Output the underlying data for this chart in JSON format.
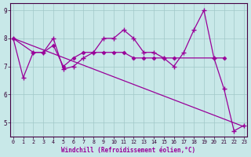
{
  "xlabel": "Windchill (Refroidissement éolien,°C)",
  "background_color": "#c8e8e8",
  "grid_color": "#a0c8c8",
  "line_color": "#990099",
  "xlim": [
    -0.3,
    23.3
  ],
  "ylim": [
    4.5,
    9.25
  ],
  "yticks": [
    5,
    6,
    7,
    8,
    9
  ],
  "xticks": [
    0,
    1,
    2,
    3,
    4,
    5,
    6,
    7,
    8,
    9,
    10,
    11,
    12,
    13,
    14,
    15,
    16,
    17,
    18,
    19,
    20,
    21,
    22,
    23
  ],
  "line1_x": [
    0,
    1,
    2,
    3,
    4,
    5,
    6,
    7,
    8,
    9,
    10,
    11,
    12,
    13,
    14,
    15,
    16,
    17,
    18,
    19,
    20,
    21,
    22,
    23
  ],
  "line1_y": [
    8.0,
    6.6,
    7.5,
    7.5,
    8.0,
    6.9,
    7.0,
    7.3,
    7.5,
    8.0,
    8.0,
    8.3,
    8.0,
    7.5,
    7.5,
    7.3,
    7.0,
    7.5,
    8.3,
    9.0,
    7.3,
    6.2,
    4.7,
    4.9
  ],
  "line2_x": [
    0,
    2,
    3,
    4,
    5,
    6,
    7,
    8,
    9,
    10,
    11,
    12,
    13,
    14,
    15,
    16,
    20,
    21
  ],
  "line2_y": [
    8.0,
    7.5,
    7.5,
    7.75,
    7.0,
    7.3,
    7.5,
    7.5,
    7.5,
    7.5,
    7.5,
    7.3,
    7.3,
    7.3,
    7.3,
    7.3,
    7.3,
    7.3
  ],
  "line3_x": [
    0,
    23
  ],
  "line3_y": [
    8.0,
    4.85
  ]
}
